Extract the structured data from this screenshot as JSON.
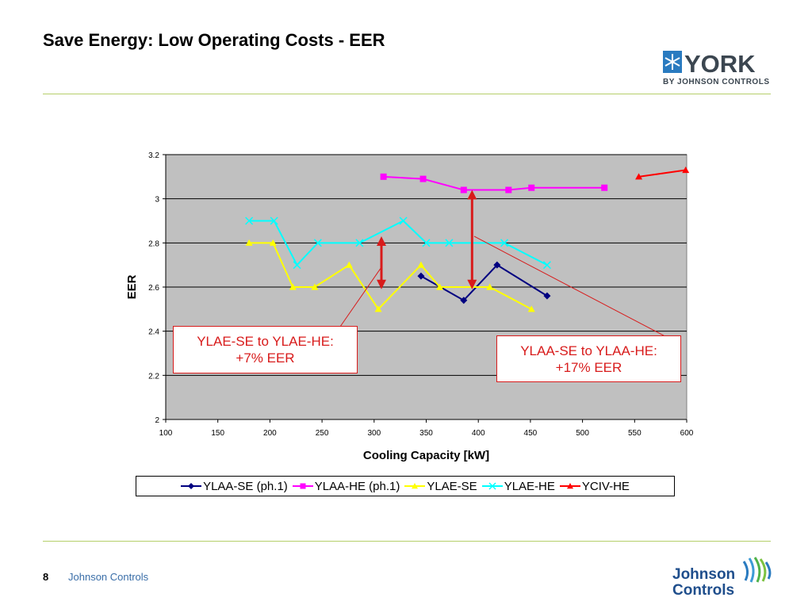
{
  "slide": {
    "title": "Save Energy: Low Operating Costs - EER",
    "page_number": "8",
    "footer": "Johnson Controls",
    "logo_york": {
      "word": "YORK",
      "tagline": "BY JOHNSON CONTROLS",
      "icon": "snowflake-icon"
    },
    "logo_jc": {
      "line1": "Johnson",
      "line2": "Controls",
      "icon": "wave-swirl-icon"
    },
    "rule_color": "#b5cf6a"
  },
  "chart_data": {
    "type": "line",
    "xlabel": "Cooling Capacity [kW]",
    "ylabel": "EER",
    "xlim": [
      100,
      600
    ],
    "ylim": [
      2,
      3.2
    ],
    "xticks": [
      100,
      150,
      200,
      250,
      300,
      350,
      400,
      450,
      500,
      550,
      600
    ],
    "yticks": [
      2,
      2.2,
      2.4,
      2.6,
      2.8,
      3,
      3.2
    ],
    "ytick_labels": [
      "2",
      "2.2",
      "2.4",
      "2.6",
      "2.8",
      "3",
      "3.2"
    ],
    "grid": "horizontal",
    "plot_background": "#c0c0c0",
    "legend_position": "bottom",
    "series": [
      {
        "name": "YLAA-SE (ph.1)",
        "color": "#000080",
        "marker": "diamond",
        "x": [
          345,
          386,
          418,
          466
        ],
        "y": [
          2.65,
          2.54,
          2.7,
          2.56
        ]
      },
      {
        "name": "YLAA-HE (ph.1)",
        "color": "#ff00ff",
        "marker": "square",
        "x": [
          309,
          347,
          386,
          429,
          451,
          521
        ],
        "y": [
          3.1,
          3.09,
          3.04,
          3.04,
          3.05,
          3.05
        ]
      },
      {
        "name": "YLAE-SE",
        "color": "#ffff00",
        "marker": "triangle",
        "x": [
          180,
          203,
          222,
          243,
          276,
          304,
          345,
          363,
          411,
          451
        ],
        "y": [
          2.8,
          2.8,
          2.6,
          2.6,
          2.7,
          2.5,
          2.7,
          2.6,
          2.6,
          2.5
        ]
      },
      {
        "name": "YLAE-HE",
        "color": "#00ffff",
        "marker": "x",
        "x": [
          180,
          204,
          226,
          246,
          286,
          328,
          350,
          372,
          425,
          466
        ],
        "y": [
          2.9,
          2.9,
          2.7,
          2.8,
          2.8,
          2.9,
          2.8,
          2.8,
          2.8,
          2.7
        ]
      },
      {
        "name": "YCIV-HE",
        "color": "#ff0000",
        "marker": "triangle",
        "x": [
          554,
          599
        ],
        "y": [
          3.1,
          3.13
        ]
      }
    ],
    "annotations": [
      {
        "text_line1": "YLAE-SE to YLAE-HE:",
        "text_line2": "+7% EER",
        "arrow": {
          "x": 307,
          "y_from": 2.59,
          "y_to": 2.83
        },
        "leader": {
          "from": [
            307,
            2.69
          ],
          "to": [
            260,
            2.37
          ]
        }
      },
      {
        "text_line1": "YLAA-SE to YLAA-HE:",
        "text_line2": "+17% EER",
        "arrow": {
          "x": 394,
          "y_from": 2.59,
          "y_to": 3.04
        },
        "leader": {
          "from": [
            396,
            2.83
          ],
          "to": [
            578,
            2.38
          ]
        }
      }
    ],
    "annotation_color": "#d81b1b"
  }
}
